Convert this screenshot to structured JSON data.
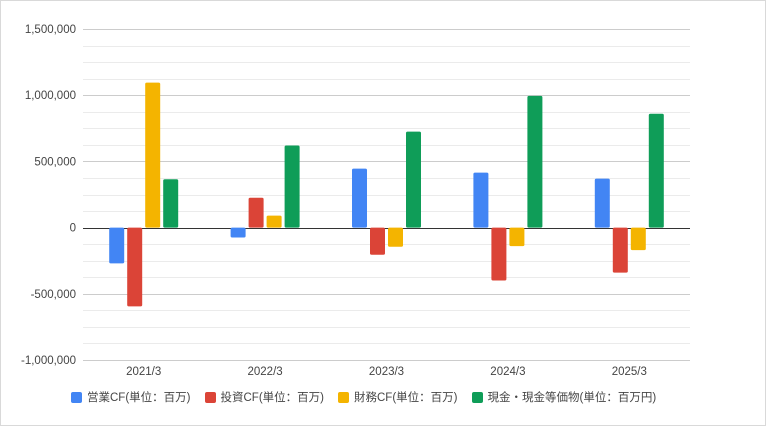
{
  "chart_data": {
    "type": "bar",
    "categories": [
      "2021/3",
      "2022/3",
      "2023/3",
      "2024/3",
      "2025/3"
    ],
    "series": [
      {
        "name": "営業CF(単位：百万)",
        "color": "#4285f4",
        "values": [
          -270000,
          -75000,
          445000,
          415000,
          370000
        ]
      },
      {
        "name": "投資CF(単位：百万)",
        "color": "#db4437",
        "values": [
          -595000,
          225000,
          -205000,
          -400000,
          -340000
        ]
      },
      {
        "name": "財務CF(単位：百万)",
        "color": "#f4b400",
        "values": [
          1095000,
          90000,
          -145000,
          -140000,
          -170000
        ]
      },
      {
        "name": "現金・現金等価物(単位：百万円)",
        "color": "#0f9d58",
        "values": [
          365000,
          620000,
          725000,
          995000,
          860000
        ]
      }
    ],
    "ylim": [
      -1000000,
      1500000
    ],
    "yticks": [
      1500000,
      1000000,
      500000,
      0,
      -500000,
      -1000000
    ],
    "ytick_labels": [
      "1,500,000",
      "1,000,000",
      "500,000",
      "0",
      "-500,000",
      "-1,000,000"
    ],
    "minor_step": 125000,
    "grid": true,
    "legend": "bottom",
    "title": "",
    "xlabel": "",
    "ylabel": ""
  }
}
